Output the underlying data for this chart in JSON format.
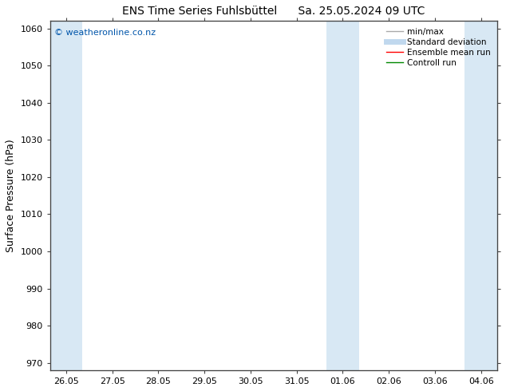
{
  "title_left": "ENS Time Series Fuhlsbüttel",
  "title_right": "Sa. 25.05.2024 09 UTC",
  "ylabel": "Surface Pressure (hPa)",
  "ylim": [
    968,
    1062
  ],
  "yticks": [
    970,
    980,
    990,
    1000,
    1010,
    1020,
    1030,
    1040,
    1050,
    1060
  ],
  "xtick_labels": [
    "26.05",
    "27.05",
    "28.05",
    "29.05",
    "30.05",
    "31.05",
    "01.06",
    "02.06",
    "03.06",
    "04.06"
  ],
  "copyright": "© weatheronline.co.nz",
  "copyright_color": "#0055aa",
  "bg_color": "#ffffff",
  "plot_bg_color": "#ffffff",
  "band_color": "#d8e8f4",
  "shaded_bands": [
    {
      "day_start": 0,
      "day_end": 1
    },
    {
      "day_start": 6,
      "day_end": 7
    },
    {
      "day_start": 9,
      "day_end": 10
    }
  ],
  "legend_items": [
    {
      "label": "min/max",
      "color": "#aaaaaa",
      "lw": 1.0
    },
    {
      "label": "Standard deviation",
      "color": "#c0d8ee",
      "lw": 5
    },
    {
      "label": "Ensemble mean run",
      "color": "#ff0000",
      "lw": 1.0
    },
    {
      "label": "Controll run",
      "color": "#008800",
      "lw": 1.0
    }
  ],
  "title_fontsize": 10,
  "ylabel_fontsize": 9,
  "tick_fontsize": 8,
  "copyright_fontsize": 8,
  "legend_fontsize": 7.5
}
